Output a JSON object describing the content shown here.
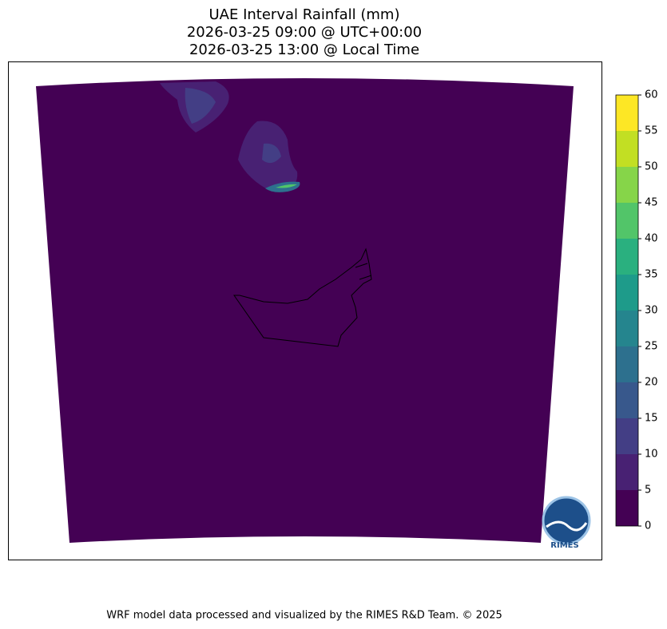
{
  "header": {
    "title_lines": [
      "UAE Interval Rainfall (mm)",
      "2026-03-25 09:00 @ UTC+00:00",
      "2026-03-25 13:00 @ Local Time"
    ]
  },
  "colorbar": {
    "lim": [
      0,
      60
    ],
    "ticks": [
      0,
      5,
      10,
      15,
      20,
      25,
      30,
      35,
      40,
      45,
      50,
      55,
      60
    ],
    "colors": [
      "#440154",
      "#482173",
      "#433e85",
      "#38588c",
      "#2d708e",
      "#25858e",
      "#1e9b8a",
      "#2ab07f",
      "#52c569",
      "#86d549",
      "#c2df23",
      "#fde725"
    ]
  },
  "logo": {
    "label": "RIMES"
  },
  "footer": "WRF model data processed and visualized by the RIMES R&D Team. © 2025"
}
